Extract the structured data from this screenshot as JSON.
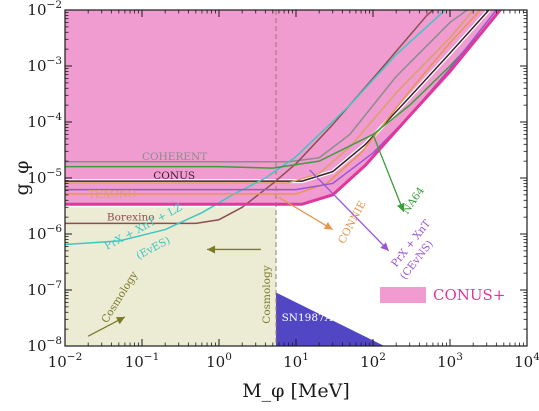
{
  "chart_data": {
    "type": "line",
    "title": "",
    "xlabel": "M_φ [MeV]",
    "ylabel": "g_φ",
    "x_scale": "log",
    "y_scale": "log",
    "xlim": [
      0.01,
      10000
    ],
    "ylim": [
      1e-08,
      0.01
    ],
    "grid": false,
    "x_ticks": [
      {
        "value": 0.01,
        "base": "10",
        "exp": "−2"
      },
      {
        "value": 0.1,
        "base": "10",
        "exp": "−1"
      },
      {
        "value": 1,
        "base": "10",
        "exp": "0"
      },
      {
        "value": 10,
        "base": "10",
        "exp": "1"
      },
      {
        "value": 100,
        "base": "10",
        "exp": "2"
      },
      {
        "value": 1000,
        "base": "10",
        "exp": "3"
      },
      {
        "value": 10000,
        "base": "10",
        "exp": "4"
      }
    ],
    "y_ticks": [
      {
        "value": 1e-08,
        "base": "10",
        "exp": "−8"
      },
      {
        "value": 1e-07,
        "base": "10",
        "exp": "−7"
      },
      {
        "value": 1e-06,
        "base": "10",
        "exp": "−6"
      },
      {
        "value": 1e-05,
        "base": "10",
        "exp": "−5"
      },
      {
        "value": 0.0001,
        "base": "10",
        "exp": "−4"
      },
      {
        "value": 0.001,
        "base": "10",
        "exp": "−3"
      },
      {
        "value": 0.01,
        "base": "10",
        "exp": "−2"
      }
    ],
    "regions": [
      {
        "name": "Cosmology",
        "color": "#ecebd4",
        "x_max": 5.5,
        "y_max": 3e-06
      },
      {
        "name": "SN1987A",
        "color": "#5147c4",
        "polygon": [
          [
            5.5,
            9e-08
          ],
          [
            5.5,
            1e-08
          ],
          [
            140,
            1e-08
          ]
        ]
      }
    ],
    "divider_x": 5.5,
    "series": [
      {
        "name": "COHERENT",
        "color": "#8c8c8c",
        "points": [
          [
            0.01,
            1.95e-05
          ],
          [
            8,
            1.95e-05
          ],
          [
            20,
            2.3e-05
          ],
          [
            50,
            6e-05
          ],
          [
            200,
            0.00065
          ],
          [
            1000,
            0.006
          ],
          [
            2000,
            0.012
          ]
        ]
      },
      {
        "name": "CONUS",
        "color": "#3c1f2c",
        "points": [
          [
            0.01,
            8.8e-06
          ],
          [
            12,
            8.8e-06
          ],
          [
            30,
            1.3e-05
          ],
          [
            80,
            4e-05
          ],
          [
            300,
            0.00028
          ],
          [
            1000,
            0.0017
          ],
          [
            3200,
            0.01
          ]
        ]
      },
      {
        "name": "TEXONO",
        "color": "#d9a06b",
        "points": [
          [
            0.01,
            8.2e-06
          ],
          [
            8,
            8.2e-06
          ],
          [
            20,
            1.2e-05
          ],
          [
            50,
            3.6e-05
          ],
          [
            200,
            0.00033
          ],
          [
            1000,
            0.0032
          ],
          [
            2000,
            0.01
          ]
        ]
      },
      {
        "name": "Borexino",
        "color": "#8c4f4f",
        "points": [
          [
            0.01,
            1.55e-06
          ],
          [
            0.5,
            1.55e-06
          ],
          [
            1,
            1.8e-06
          ],
          [
            2,
            3e-06
          ],
          [
            5,
            8e-06
          ],
          [
            10,
            1.8e-05
          ],
          [
            30,
            9e-05
          ],
          [
            100,
            0.0006
          ],
          [
            500,
            0.008
          ],
          [
            700,
            0.012
          ]
        ]
      },
      {
        "name": "PrX + XnT + LZ (EvES)",
        "color": "#3fc6c2",
        "points": [
          [
            0.01,
            6.5e-07
          ],
          [
            0.05,
            7.5e-07
          ],
          [
            0.2,
            1.2e-06
          ],
          [
            0.6,
            2.4e-06
          ],
          [
            1.5,
            5e-06
          ],
          [
            4,
            1e-05
          ],
          [
            10,
            2.4e-05
          ],
          [
            50,
            0.0002
          ],
          [
            200,
            0.0016
          ],
          [
            1000,
            0.012
          ]
        ]
      },
      {
        "name": "CONNIE",
        "color": "#e8954f",
        "points": [
          [
            0.01,
            5.2e-06
          ],
          [
            10,
            5.2e-06
          ],
          [
            25,
            8e-06
          ],
          [
            70,
            2.8e-05
          ],
          [
            300,
            0.00036
          ],
          [
            1000,
            0.0026
          ],
          [
            2800,
            0.012
          ]
        ]
      },
      {
        "name": "NA64",
        "color": "#3a9e3a",
        "points": [
          [
            0.01,
            1.6e-05
          ],
          [
            1,
            1.6e-05
          ],
          [
            5,
            1.5e-05
          ],
          [
            20,
            2e-05
          ],
          [
            100,
            6e-05
          ],
          [
            300,
            0.0002
          ],
          [
            1000,
            0.001
          ],
          [
            3000,
            0.005
          ],
          [
            5000,
            0.012
          ]
        ]
      },
      {
        "name": "PrX + XnT (CEvNS)",
        "color": "#9a55d6",
        "points": [
          [
            0.01,
            6.2e-06
          ],
          [
            10,
            6.2e-06
          ],
          [
            30,
            8e-06
          ],
          [
            100,
            2.8e-05
          ],
          [
            300,
            0.00013
          ],
          [
            1000,
            0.0009
          ],
          [
            4000,
            0.01
          ]
        ]
      },
      {
        "name": "CONUS+",
        "color": "#e0389a",
        "points": [
          [
            0.01,
            3.4e-06
          ],
          [
            12,
            3.4e-06
          ],
          [
            30,
            5e-06
          ],
          [
            80,
            1.7e-05
          ],
          [
            300,
            0.00013
          ],
          [
            1000,
            0.0008
          ],
          [
            5000,
            0.012
          ]
        ]
      }
    ],
    "annotations": [
      {
        "text": "COHERENT",
        "x": 0.1,
        "y": 2.1e-05,
        "color": "#8c8c8c",
        "rotate": 0
      },
      {
        "text": "CONUS",
        "x": 0.14,
        "y": 9.6e-06,
        "color": "#3c1f2c",
        "rotate": 0
      },
      {
        "text": "TEXONO",
        "x": 0.02,
        "y": 4.5e-06,
        "color": "#d9a06b",
        "rotate": 0
      },
      {
        "text": "Borexino",
        "x": 0.035,
        "y": 1.75e-06,
        "color": "#8c4f4f",
        "rotate": 0
      },
      {
        "text": "PrX + XnT + LZ",
        "x": 0.035,
        "y": 5.2e-07,
        "color": "#3fc6c2",
        "rotate": -28
      },
      {
        "text": "(EvES)",
        "x": 0.09,
        "y": 3.5e-07,
        "color": "#3fc6c2",
        "rotate": -28
      },
      {
        "text": "CONNIE",
        "x": 42,
        "y": 6.5e-07,
        "color": "#e8954f",
        "rotate": -62
      },
      {
        "text": "NA64",
        "x": 280,
        "y": 2.2e-06,
        "color": "#3a9e3a",
        "rotate": -55
      },
      {
        "text": "PrX + XnT",
        "x": 200,
        "y": 2.5e-07,
        "color": "#9a55d6",
        "rotate": -52
      },
      {
        "text": "(CEvNS)",
        "x": 260,
        "y": 1.5e-07,
        "color": "#9a55d6",
        "rotate": -52
      },
      {
        "text": "Cosmology",
        "x": 0.035,
        "y": 2.5e-08,
        "color": "#7a7a2a",
        "rotate": -58
      },
      {
        "text": "Cosmology",
        "x": 4.6,
        "y": 2.5e-08,
        "color": "#7a7a2a",
        "rotate": -90
      },
      {
        "text": "SN1987A",
        "x": 6.5,
        "y": 2.8e-08,
        "color": "#ffffff",
        "rotate": 0
      }
    ],
    "arrows": [
      {
        "color": "#7a7a2a",
        "from": [
          3.5,
          5.3e-07
        ],
        "to": [
          0.7,
          5.3e-07
        ]
      },
      {
        "color": "#7a7a2a",
        "from": [
          0.02,
          1.5e-08
        ],
        "to": [
          0.06,
          3.3e-08
        ]
      },
      {
        "color": "#e8954f",
        "from": [
          6,
          4.5e-06
        ],
        "to": [
          30,
          1.2e-06
        ]
      },
      {
        "color": "#3a9e3a",
        "from": [
          100,
          6e-05
        ],
        "to": [
          250,
          2.5e-06
        ]
      },
      {
        "color": "#9a55d6",
        "from": [
          15,
          1.4e-05
        ],
        "to": [
          160,
          5e-07
        ]
      }
    ],
    "legend": {
      "label": "CONUS+",
      "color": "#f09cd0",
      "text_color": "#e0389a",
      "position": "bottom-right"
    }
  }
}
